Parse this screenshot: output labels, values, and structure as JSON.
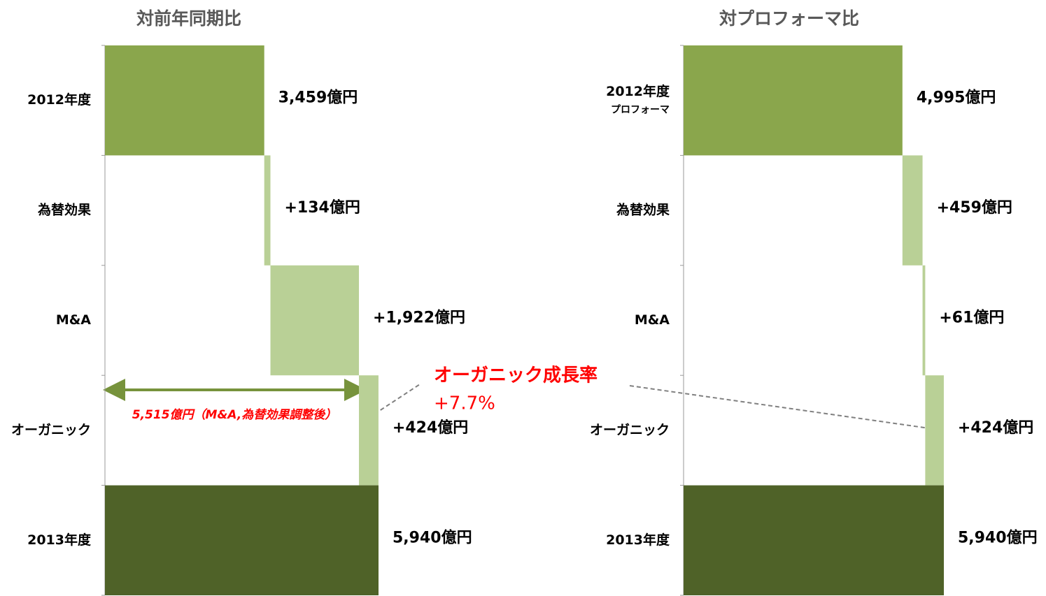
{
  "chart_data": [
    {
      "type": "waterfall",
      "orientation": "horizontal",
      "title": "対前年同期比",
      "categories": [
        "2012年度",
        "為替効果",
        "M&A",
        "オーガニック",
        "2013年度"
      ],
      "values": [
        3459,
        134,
        1922,
        424,
        5940
      ],
      "value_labels": [
        "3,459億円",
        "+134億円",
        "+1,922億円",
        "+424億円",
        "5,940億円"
      ],
      "kinds": [
        "total",
        "delta",
        "delta",
        "delta",
        "total"
      ],
      "colors": [
        "#8aa64c",
        "#b9d096",
        "#b9d096",
        "#b9d096",
        "#4f6228"
      ],
      "xlim": [
        0,
        5940
      ]
    },
    {
      "type": "waterfall",
      "orientation": "horizontal",
      "title": "対プロフォーマ比",
      "categories": [
        {
          "label": "2012年度",
          "sublabel": "プロフォーマ"
        },
        "為替効果",
        "M&A",
        "オーガニック",
        "2013年度"
      ],
      "values": [
        4995,
        459,
        61,
        424,
        5940
      ],
      "value_labels": [
        "4,995億円",
        "+459億円",
        "+61億円",
        "+424億円",
        "5,940億円"
      ],
      "kinds": [
        "total",
        "delta",
        "delta",
        "delta",
        "total"
      ],
      "colors": [
        "#8aa64c",
        "#b9d096",
        "#b9d096",
        "#b9d096",
        "#4f6228"
      ],
      "xlim": [
        0,
        5940
      ]
    }
  ],
  "annotations": {
    "growth_title": "オーガニック成長率",
    "growth_value": "+7.7%",
    "adjusted": "5,515億円（M&A,為替効果調整後）"
  }
}
